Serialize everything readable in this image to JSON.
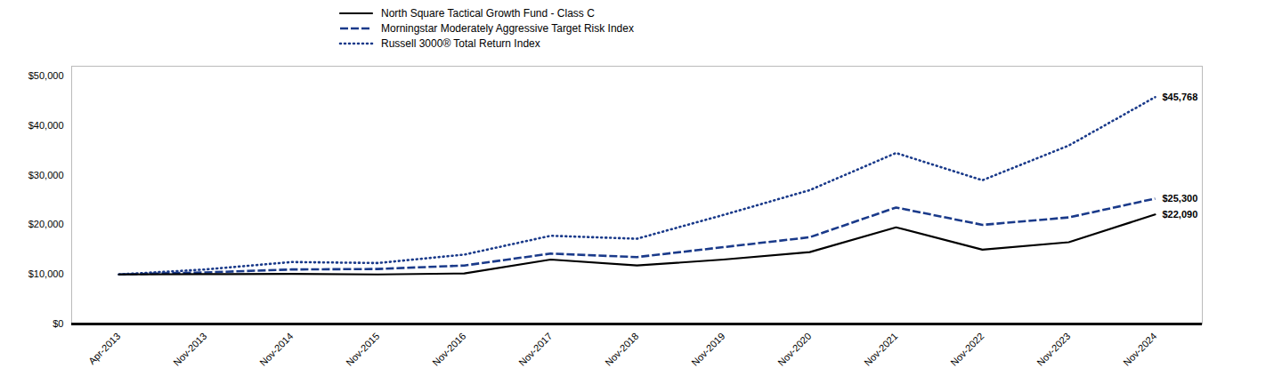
{
  "chart_data": {
    "type": "line",
    "categories": [
      "Apr-2013",
      "Nov-2013",
      "Nov-2014",
      "Nov-2015",
      "Nov-2016",
      "Nov-2017",
      "Nov-2018",
      "Nov-2019",
      "Nov-2020",
      "Nov-2021",
      "Nov-2022",
      "Nov-2023",
      "Nov-2024"
    ],
    "series": [
      {
        "name": "North Square Tactical Growth Fund - Class C",
        "color": "#000000",
        "line_style": "solid",
        "values": [
          10000,
          10050,
          10100,
          10000,
          10200,
          13000,
          11800,
          13000,
          14500,
          19500,
          15000,
          16500,
          22090
        ]
      },
      {
        "name": "Morningstar Moderately Aggressive Target Risk Index",
        "color": "#1a3a8a",
        "line_style": "dashed",
        "values": [
          10000,
          10400,
          11000,
          11100,
          11800,
          14200,
          13500,
          15500,
          17500,
          23500,
          20000,
          21500,
          25300
        ]
      },
      {
        "name": "Russell 3000® Total Return Index",
        "color": "#1a3a8a",
        "line_style": "dotted",
        "values": [
          10000,
          11000,
          12500,
          12300,
          14000,
          17800,
          17200,
          22000,
          27000,
          34500,
          29000,
          36000,
          45768
        ]
      }
    ],
    "annotations": [
      {
        "text": "$45,768",
        "x": "Nov-2024",
        "y": 45768
      },
      {
        "text": "$25,300",
        "x": "Nov-2024",
        "y": 25300
      },
      {
        "text": "$22,090",
        "x": "Nov-2024",
        "y": 22090
      }
    ],
    "ylim": [
      0,
      52000
    ],
    "yticks": [
      {
        "value": 0,
        "label": "$0"
      },
      {
        "value": 10000,
        "label": "$10,000"
      },
      {
        "value": 20000,
        "label": "$20,000"
      },
      {
        "value": 30000,
        "label": "$30,000"
      },
      {
        "value": 40000,
        "label": "$40,000"
      },
      {
        "value": 50000,
        "label": "$50,000"
      }
    ],
    "grid": false,
    "legend": "upper left"
  }
}
